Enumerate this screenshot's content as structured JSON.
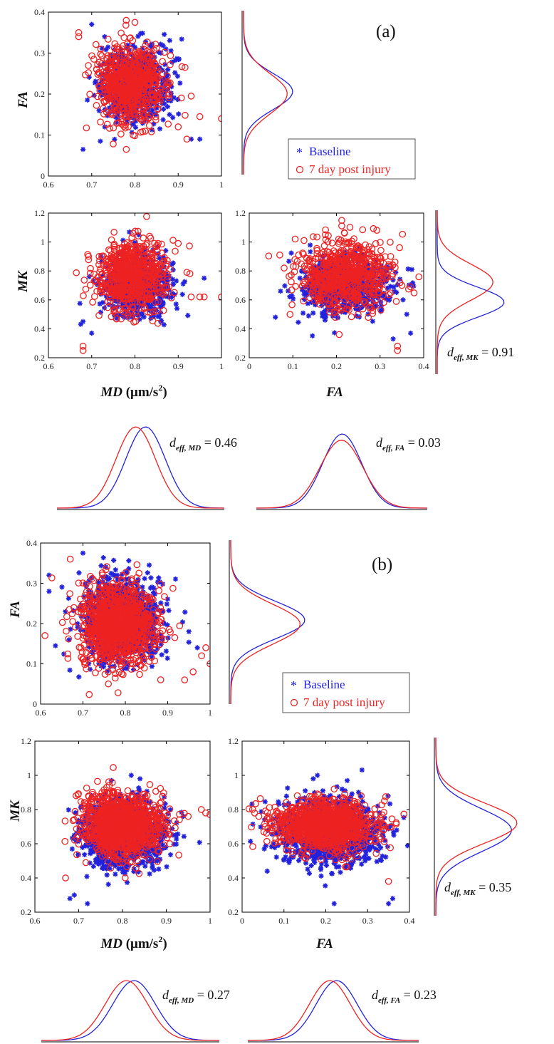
{
  "figure": {
    "blocks": [
      {
        "panel_label": "(a)",
        "legend": {
          "baseline": "Baseline",
          "post": "7 day post injury"
        },
        "axis_labels": {
          "fa_y": "FA",
          "mk_y": "MK",
          "md_x_main": "MD",
          "md_x_unit": " (μm/s",
          "md_x_sup": "2",
          "md_x_close": ")",
          "fa_x": "FA"
        },
        "deff": {
          "mk": {
            "prefix": "d",
            "sub": "eff, MK",
            "value": "0.91"
          },
          "md": {
            "prefix": "d",
            "sub": "eff, MD",
            "value": "0.46"
          },
          "fa": {
            "prefix": "d",
            "sub": "eff, FA",
            "value": "0.03"
          }
        }
      },
      {
        "panel_label": "(b)",
        "legend": {
          "baseline": "Baseline",
          "post": "7 day post injury"
        },
        "axis_labels": {
          "fa_y": "FA",
          "mk_y": "MK",
          "md_x_main": "MD",
          "md_x_unit": " (μm/s",
          "md_x_sup": "2",
          "md_x_close": ")",
          "fa_x": "FA"
        },
        "deff": {
          "mk": {
            "prefix": "d",
            "sub": "eff, MK",
            "value": "0.35"
          },
          "md": {
            "prefix": "d",
            "sub": "eff, MD",
            "value": "0.27"
          },
          "fa": {
            "prefix": "d",
            "sub": "eff, FA",
            "value": "0.23"
          }
        }
      }
    ]
  },
  "colors": {
    "baseline": "#2222dd",
    "post": "#ee2222"
  },
  "chart_data": [
    {
      "id": "a-fa-vs-md",
      "type": "scatter",
      "xlabel": "",
      "ylabel": "FA",
      "xlim": [
        0.6,
        1.0
      ],
      "ylim": [
        0,
        0.4
      ],
      "xticks": [
        "0.6",
        "0.7",
        "0.8",
        "0.9",
        "1"
      ],
      "yticks": [
        "0",
        "0.1",
        "0.2",
        "0.3",
        "0.4"
      ],
      "series": [
        {
          "name": "Baseline",
          "marker": "asterisk",
          "center": [
            0.8,
            0.225
          ],
          "spread": [
            0.04,
            0.045
          ],
          "points": [
            [
              0.7,
              0.37
            ],
            [
              0.68,
              0.065
            ],
            [
              0.72,
              0.085
            ],
            [
              0.95,
              0.09
            ],
            [
              0.93,
              0.09
            ],
            [
              0.88,
              0.15
            ],
            [
              0.86,
              0.3
            ],
            [
              0.73,
              0.34
            ]
          ]
        },
        {
          "name": "7 day post injury",
          "marker": "circle",
          "center": [
            0.79,
            0.225
          ],
          "spread": [
            0.04,
            0.048
          ],
          "points": [
            [
              0.67,
              0.35
            ],
            [
              0.67,
              0.34
            ],
            [
              0.78,
              0.38
            ],
            [
              0.8,
              0.375
            ],
            [
              0.93,
              0.195
            ],
            [
              0.95,
              0.145
            ],
            [
              1.0,
              0.14
            ],
            [
              0.9,
              0.12
            ],
            [
              0.92,
              0.09
            ],
            [
              0.78,
              0.065
            ]
          ]
        }
      ]
    },
    {
      "id": "a-mk-vs-md",
      "type": "scatter",
      "xlabel": "MD (μm/s2)",
      "ylabel": "MK",
      "xlim": [
        0.6,
        1.0
      ],
      "ylim": [
        0.2,
        1.2
      ],
      "xticks": [
        "0.6",
        "0.7",
        "0.8",
        "0.9",
        "1"
      ],
      "yticks": [
        "0.2",
        "0.4",
        "0.6",
        "0.8",
        "1",
        "1.2"
      ],
      "series": [
        {
          "name": "Baseline",
          "marker": "asterisk",
          "center": [
            0.805,
            0.7
          ],
          "spread": [
            0.04,
            0.1
          ],
          "points": [
            [
              0.96,
              0.75
            ],
            [
              0.7,
              0.37
            ],
            [
              0.68,
              0.45
            ],
            [
              0.86,
              0.55
            ]
          ]
        },
        {
          "name": "7 day post injury",
          "marker": "circle",
          "center": [
            0.79,
            0.77
          ],
          "spread": [
            0.04,
            0.12
          ],
          "points": [
            [
              0.68,
              0.28
            ],
            [
              0.68,
              0.25
            ],
            [
              0.92,
              0.79
            ],
            [
              0.93,
              0.62
            ],
            [
              0.95,
              0.62
            ],
            [
              0.96,
              0.62
            ],
            [
              1.0,
              0.62
            ],
            [
              0.9,
              0.99
            ]
          ]
        }
      ]
    },
    {
      "id": "a-mk-vs-fa",
      "type": "scatter",
      "xlabel": "FA",
      "ylabel": "",
      "xlim": [
        0,
        0.4
      ],
      "ylim": [
        0.2,
        1.2
      ],
      "xticks": [
        "0",
        "0.1",
        "0.2",
        "0.3",
        "0.4"
      ],
      "yticks": [
        "0.2",
        "0.4",
        "0.6",
        "0.8",
        "1",
        "1.2"
      ],
      "series": [
        {
          "name": "Baseline",
          "marker": "asterisk",
          "center": [
            0.22,
            0.7
          ],
          "spread": [
            0.05,
            0.1
          ],
          "points": [
            [
              0.06,
              0.48
            ],
            [
              0.37,
              0.37
            ],
            [
              0.33,
              0.33
            ]
          ]
        },
        {
          "name": "7 day post injury",
          "marker": "circle",
          "center": [
            0.22,
            0.77
          ],
          "spread": [
            0.055,
            0.12
          ],
          "points": [
            [
              0.07,
              0.91
            ],
            [
              0.08,
              0.82
            ],
            [
              0.34,
              0.28
            ],
            [
              0.34,
              0.25
            ],
            [
              0.35,
              0.7
            ],
            [
              0.37,
              0.69
            ]
          ]
        }
      ]
    },
    {
      "id": "b-fa-vs-md",
      "type": "scatter",
      "xlabel": "",
      "ylabel": "FA",
      "xlim": [
        0.6,
        1.0
      ],
      "ylim": [
        0,
        0.4
      ],
      "xticks": [
        "0.6",
        "0.7",
        "0.8",
        "0.9",
        "1"
      ],
      "yticks": [
        "0",
        "0.1",
        "0.2",
        "0.3",
        "0.4"
      ],
      "series": [
        {
          "name": "Baseline",
          "marker": "asterisk",
          "center": [
            0.79,
            0.21
          ],
          "spread": [
            0.045,
            0.05
          ],
          "points": [
            [
              0.62,
              0.32
            ],
            [
              0.62,
              0.28
            ],
            [
              0.7,
              0.375
            ],
            [
              0.97,
              0.14
            ],
            [
              0.95,
              0.18
            ]
          ]
        },
        {
          "name": "7 day post injury",
          "marker": "circle",
          "center": [
            0.78,
            0.2
          ],
          "spread": [
            0.045,
            0.05
          ],
          "points": [
            [
              0.67,
              0.36
            ],
            [
              0.99,
              0.14
            ],
            [
              1.0,
              0.1
            ],
            [
              0.94,
              0.06
            ],
            [
              0.96,
              0.08
            ],
            [
              0.98,
              0.12
            ],
            [
              0.76,
              0.05
            ]
          ]
        }
      ]
    },
    {
      "id": "b-mk-vs-md",
      "type": "scatter",
      "xlabel": "MD (μm/s2)",
      "ylabel": "MK",
      "xlim": [
        0.6,
        1.0
      ],
      "ylim": [
        0.2,
        1.2
      ],
      "xticks": [
        "0.6",
        "0.7",
        "0.8",
        "0.9",
        "1"
      ],
      "yticks": [
        "0.2",
        "0.4",
        "0.6",
        "0.8",
        "1",
        "1.2"
      ],
      "series": [
        {
          "name": "Baseline",
          "marker": "asterisk",
          "center": [
            0.8,
            0.66
          ],
          "spread": [
            0.045,
            0.1
          ],
          "points": [
            [
              0.68,
              0.28
            ],
            [
              0.69,
              0.3
            ],
            [
              0.82,
              1.0
            ],
            [
              0.84,
              0.98
            ],
            [
              0.72,
              0.25
            ]
          ]
        },
        {
          "name": "7 day post injury",
          "marker": "circle",
          "center": [
            0.8,
            0.71
          ],
          "spread": [
            0.045,
            0.09
          ],
          "points": [
            [
              0.67,
              0.4
            ],
            [
              0.98,
              0.8
            ],
            [
              0.99,
              0.78
            ],
            [
              1.0,
              0.77
            ],
            [
              0.95,
              0.76
            ],
            [
              0.93,
              0.74
            ]
          ]
        }
      ]
    },
    {
      "id": "b-mk-vs-fa",
      "type": "scatter",
      "xlabel": "FA",
      "ylabel": "",
      "xlim": [
        0,
        0.4
      ],
      "ylim": [
        0.2,
        1.2
      ],
      "xticks": [
        "0",
        "0.1",
        "0.2",
        "0.3",
        "0.4"
      ],
      "yticks": [
        "0.2",
        "0.4",
        "0.6",
        "0.8",
        "1",
        "1.2"
      ],
      "series": [
        {
          "name": "Baseline",
          "marker": "asterisk",
          "center": [
            0.21,
            0.67
          ],
          "spread": [
            0.06,
            0.09
          ],
          "points": [
            [
              0.18,
              1.0
            ],
            [
              0.17,
              0.98
            ],
            [
              0.22,
              0.25
            ],
            [
              0.35,
              0.25
            ],
            [
              0.06,
              0.44
            ],
            [
              0.36,
              0.28
            ]
          ]
        },
        {
          "name": "7 day post injury",
          "marker": "circle",
          "center": [
            0.2,
            0.71
          ],
          "spread": [
            0.06,
            0.07
          ],
          "points": [
            [
              0.04,
              0.76
            ],
            [
              0.35,
              0.38
            ],
            [
              0.34,
              0.85
            ],
            [
              0.22,
              0.92
            ]
          ]
        }
      ]
    }
  ],
  "density_curves": [
    {
      "id": "a-fa-density",
      "orientation": "vertical",
      "series": [
        {
          "name": "Baseline",
          "mean": 0.225,
          "sd": 0.04
        },
        {
          "name": "7 day post injury",
          "mean": 0.22,
          "sd": 0.045
        }
      ]
    },
    {
      "id": "a-mk-density",
      "orientation": "vertical",
      "series": [
        {
          "name": "Baseline",
          "mean": 0.68,
          "sd": 0.075
        },
        {
          "name": "7 day post injury",
          "mean": 0.78,
          "sd": 0.09
        }
      ]
    },
    {
      "id": "a-md-density",
      "orientation": "horizontal",
      "series": [
        {
          "name": "Baseline",
          "mean": 0.805,
          "sd": 0.04
        },
        {
          "name": "7 day post injury",
          "mean": 0.785,
          "sd": 0.04
        }
      ]
    },
    {
      "id": "a-fa2-density",
      "orientation": "horizontal",
      "series": [
        {
          "name": "Baseline",
          "mean": 0.22,
          "sd": 0.055
        },
        {
          "name": "7 day post injury",
          "mean": 0.218,
          "sd": 0.06
        }
      ]
    },
    {
      "id": "b-fa-density",
      "orientation": "vertical",
      "series": [
        {
          "name": "Baseline",
          "mean": 0.21,
          "sd": 0.045
        },
        {
          "name": "7 day post injury",
          "mean": 0.2,
          "sd": 0.048
        }
      ]
    },
    {
      "id": "b-mk-density",
      "orientation": "vertical",
      "series": [
        {
          "name": "Baseline",
          "mean": 0.68,
          "sd": 0.075
        },
        {
          "name": "7 day post injury",
          "mean": 0.705,
          "sd": 0.07
        }
      ]
    },
    {
      "id": "b-md-density",
      "orientation": "horizontal",
      "series": [
        {
          "name": "Baseline",
          "mean": 0.8,
          "sd": 0.042
        },
        {
          "name": "7 day post injury",
          "mean": 0.785,
          "sd": 0.042
        }
      ]
    },
    {
      "id": "b-fa2-density",
      "orientation": "horizontal",
      "series": [
        {
          "name": "Baseline",
          "mean": 0.22,
          "sd": 0.06
        },
        {
          "name": "7 day post injury",
          "mean": 0.2,
          "sd": 0.06
        }
      ]
    }
  ]
}
